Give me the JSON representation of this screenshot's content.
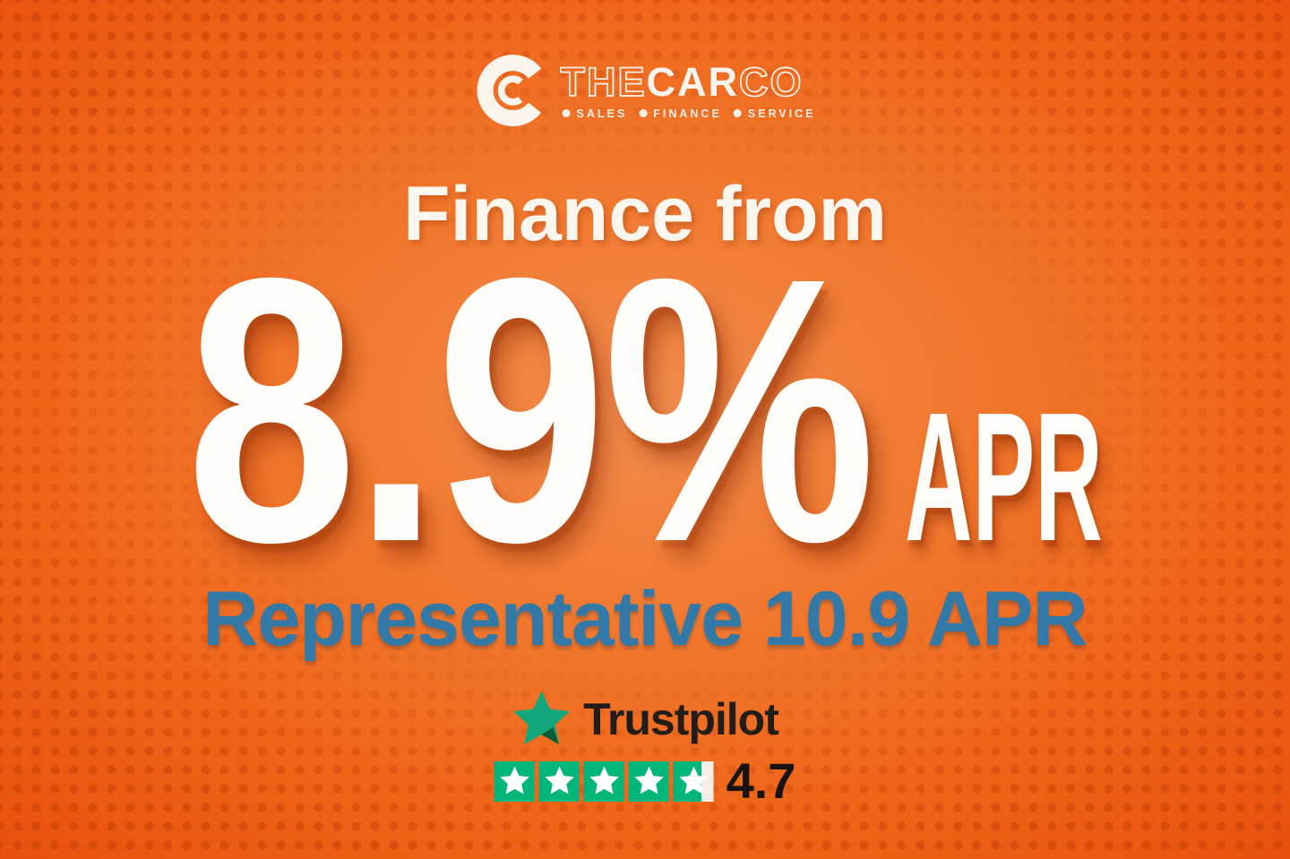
{
  "brand": {
    "name_the": "THE",
    "name_car": "CAR",
    "name_co": "CO",
    "tagline_items": [
      "SALES",
      "FINANCE",
      "SERVICE"
    ]
  },
  "offer": {
    "heading": "Finance from",
    "rate": "8.9%",
    "rate_unit": "APR",
    "representative": "Representative 10.9 APR"
  },
  "trustpilot": {
    "brand": "Trustpilot",
    "score": "4.7",
    "stars_total": 5,
    "stars_full": 4,
    "last_star_fill": 0.7,
    "box_color": "#00b67a",
    "empty_color": "#f3eee7"
  },
  "colors": {
    "background_orange": "#f07328",
    "background_edge": "#e44d0c",
    "halftone_dot": "#c43e08",
    "headline_white": "#fffdf9",
    "accent_blue": "#3379a7",
    "trustpilot_green": "#00b67a",
    "trustpilot_dark_notch": "#0a5c37",
    "dark_text": "#221d18"
  },
  "icons": {
    "logo": "carco-double-c-icon",
    "trustpilot": "trustpilot-star-icon"
  }
}
